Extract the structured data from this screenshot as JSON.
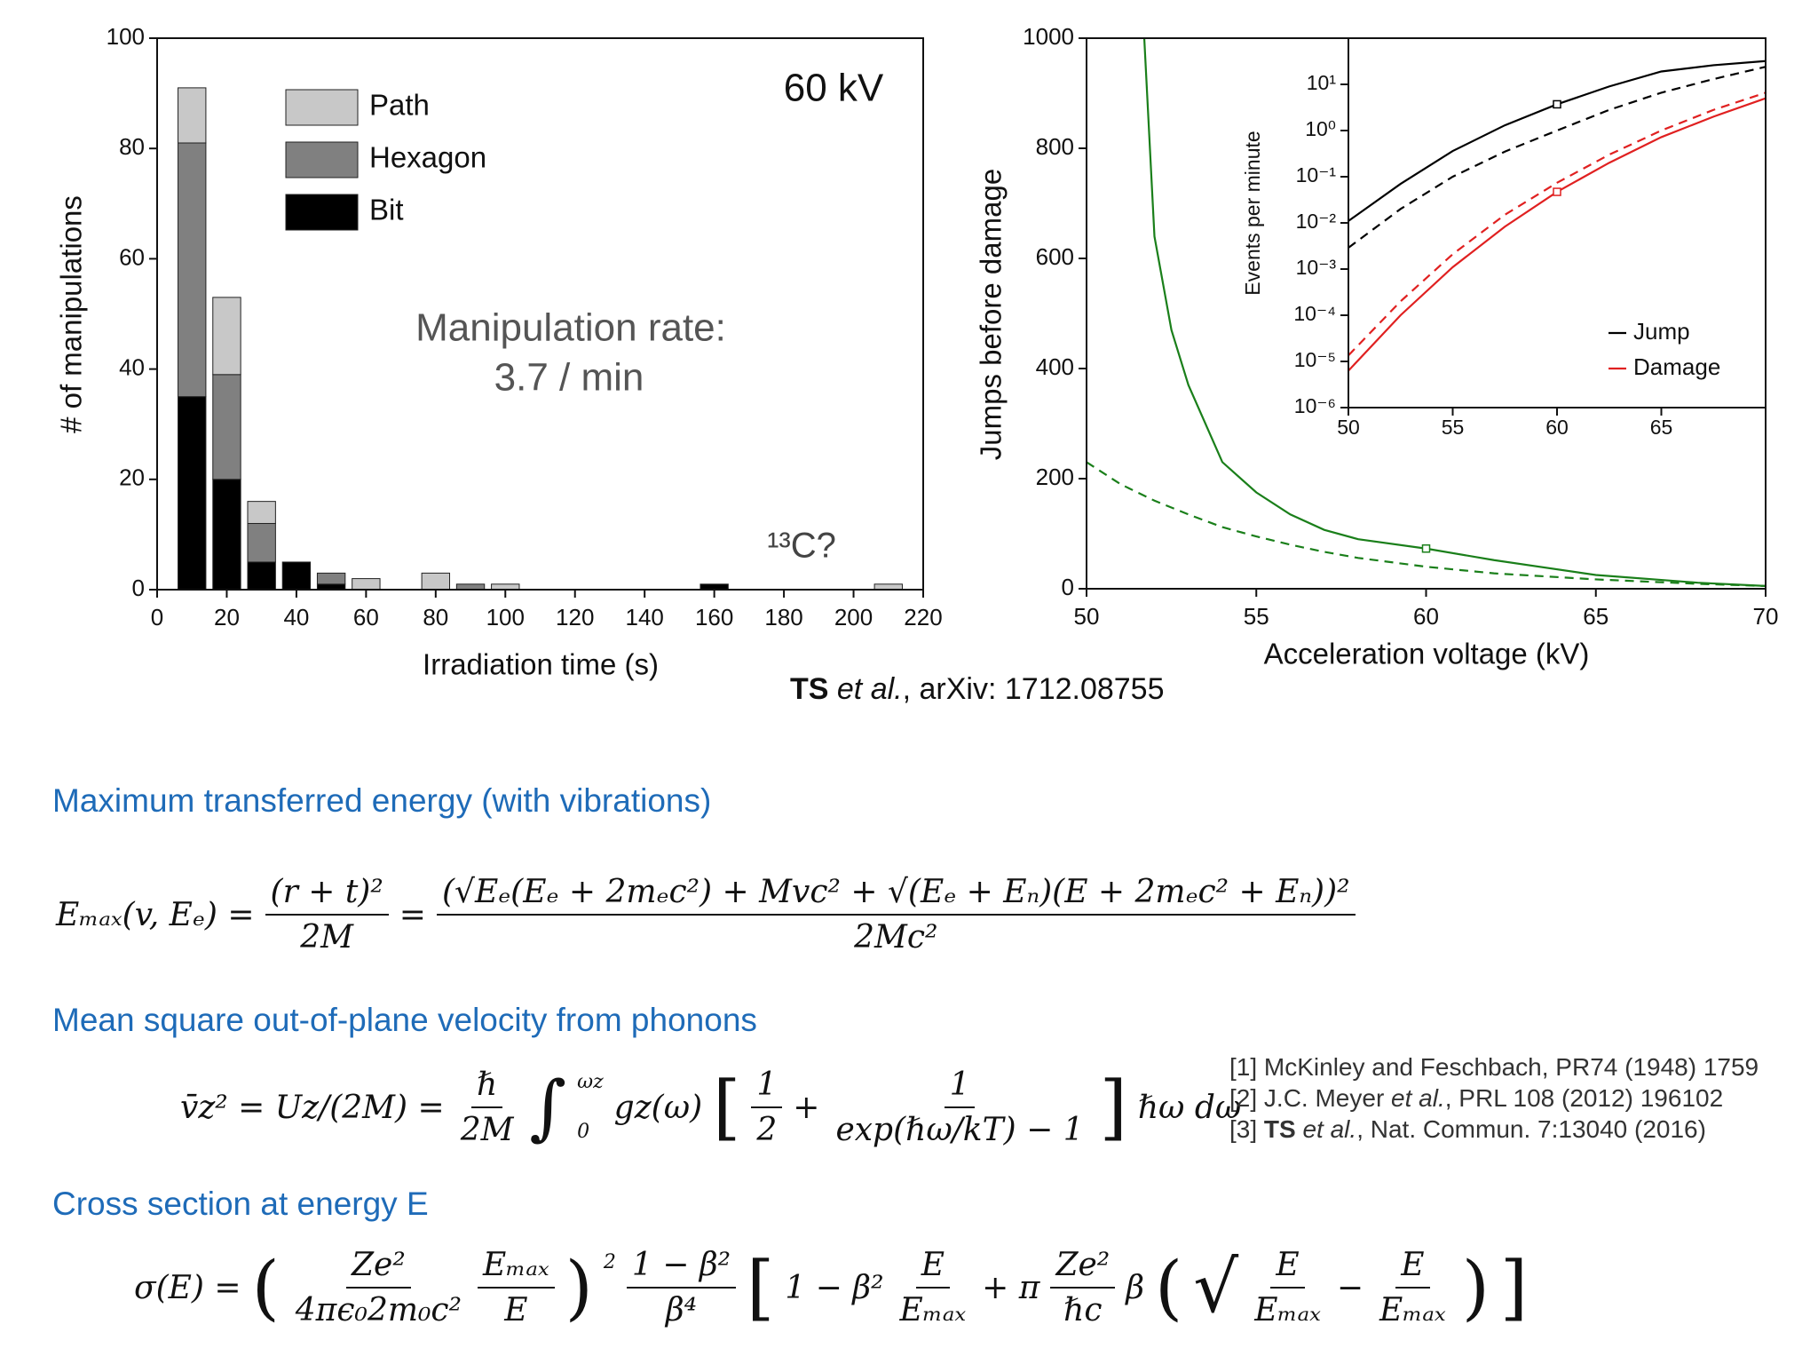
{
  "chart_data": [
    {
      "type": "bar",
      "stacked": true,
      "x": [
        10,
        20,
        30,
        40,
        50,
        60,
        70,
        80,
        90,
        100,
        110,
        120,
        130,
        140,
        150,
        160,
        170,
        180,
        190,
        200,
        210
      ],
      "series": [
        {
          "name": "Bit",
          "color": "#000000",
          "values": [
            35,
            20,
            5,
            5,
            1,
            0,
            0,
            0,
            0,
            0,
            0,
            0,
            0,
            0,
            0,
            1,
            0,
            0,
            0,
            0,
            0
          ]
        },
        {
          "name": "Hexagon",
          "color": "#808080",
          "values": [
            46,
            19,
            7,
            0,
            2,
            0,
            0,
            0,
            1,
            0,
            0,
            0,
            0,
            0,
            0,
            0,
            0,
            0,
            0,
            0,
            0
          ]
        },
        {
          "name": "Path",
          "color": "#c8c8c8",
          "values": [
            10,
            14,
            4,
            0,
            0,
            2,
            0,
            3,
            0,
            1,
            0,
            0,
            0,
            0,
            0,
            0,
            0,
            0,
            0,
            0,
            1
          ]
        }
      ],
      "xlim": [
        0,
        220
      ],
      "ylim": [
        0,
        100
      ],
      "xticks": [
        0,
        20,
        40,
        60,
        80,
        100,
        120,
        140,
        160,
        180,
        200,
        220
      ],
      "yticks": [
        0,
        20,
        40,
        60,
        80,
        100
      ],
      "xlabel": "Irradiation time (s)",
      "ylabel": "# of manipulations",
      "legend": "upper left",
      "annotations": [
        "60 kV",
        "Manipulation rate:",
        "3.7 / min",
        "¹³C?"
      ]
    },
    {
      "type": "line",
      "xlim": [
        50,
        70
      ],
      "ylim": [
        0,
        1000
      ],
      "xticks": [
        50,
        55,
        60,
        65,
        70
      ],
      "yticks": [
        0,
        200,
        400,
        600,
        800,
        1000
      ],
      "xlabel": "Acceleration voltage (kV)",
      "ylabel": "Jumps before damage",
      "highlight_x": 60,
      "series": [
        {
          "color": "#1a7f1a",
          "dash": false,
          "x": [
            51.7,
            52,
            52.5,
            53,
            54,
            55,
            56,
            57,
            58,
            60,
            62,
            65,
            68,
            70
          ],
          "values": [
            1000,
            640,
            470,
            370,
            230,
            175,
            135,
            107,
            90,
            73,
            52,
            25,
            11,
            5
          ]
        },
        {
          "color": "#1a7f1a",
          "dash": true,
          "x": [
            50,
            51,
            52,
            53,
            54,
            55,
            56,
            57,
            58,
            60,
            62,
            65,
            68,
            70
          ],
          "values": [
            230,
            190,
            160,
            135,
            112,
            95,
            80,
            67,
            56,
            40,
            28,
            17,
            9,
            5
          ]
        }
      ]
    },
    {
      "type": "line",
      "log_y": true,
      "xlim": [
        50,
        70
      ],
      "ylim": [
        1e-06,
        100
      ],
      "xticks": [
        50,
        55,
        60,
        65
      ],
      "yticks": [
        {
          "value": 10,
          "label": "10¹"
        },
        {
          "value": 1,
          "label": "10⁰"
        },
        {
          "value": 0.1,
          "label": "10⁻¹"
        },
        {
          "value": 0.01,
          "label": "10⁻²"
        },
        {
          "value": 0.001,
          "label": "10⁻³"
        },
        {
          "value": 0.0001,
          "label": "10⁻⁴"
        },
        {
          "value": 1e-05,
          "label": "10⁻⁵"
        },
        {
          "value": 1e-06,
          "label": "10⁻⁶"
        }
      ],
      "ylabel": "Events per minute",
      "legend": "lower right",
      "highlight_x": 60,
      "series": [
        {
          "name": "Jump",
          "color": "#000000",
          "dash": false,
          "x": [
            50,
            52.5,
            55,
            57.5,
            60,
            62.5,
            65,
            67.5,
            70
          ],
          "values": [
            0.011,
            0.07,
            0.36,
            1.3,
            3.7,
            9,
            19,
            26,
            32
          ]
        },
        {
          "color": "#000000",
          "dash": true,
          "x": [
            50,
            52.5,
            55,
            57.5,
            60,
            62.5,
            65,
            67.5,
            70
          ],
          "values": [
            0.0029,
            0.02,
            0.1,
            0.35,
            1.0,
            2.8,
            6.6,
            13,
            24
          ]
        },
        {
          "name": "Damage",
          "color": "#e02020",
          "dash": false,
          "x": [
            50,
            52.5,
            55,
            57.5,
            60,
            62.5,
            65,
            67.5,
            70
          ],
          "values": [
            6.3e-06,
            0.0001,
            0.0011,
            0.0083,
            0.047,
            0.2,
            0.72,
            2.0,
            5.0
          ]
        },
        {
          "color": "#e02020",
          "dash": true,
          "x": [
            50,
            52.5,
            55,
            57.5,
            60,
            62.5,
            65,
            67.5,
            70
          ],
          "values": [
            1.35e-05,
            0.0002,
            0.0021,
            0.015,
            0.074,
            0.3,
            1.0,
            2.8,
            6.6
          ]
        }
      ]
    }
  ],
  "citation": [
    "TS",
    " et al.",
    ", arXiv: 1712.08755"
  ],
  "headings": [
    "Maximum transferred energy (with vibrations)",
    "Mean square out-of-plane velocity from phonons",
    "Cross section at energy E"
  ],
  "equations": [
    [
      "Eₘₐₓ(v, Eₑ) =",
      {
        "num": "(r + t)²",
        "den": "2M"
      },
      "=",
      {
        "num": "(√Eₑ(Eₑ + 2mₑc²) + Mvc² + √(Eₑ + Eₙ)(E + 2mₑc² + Eₙ))²",
        "den": "2Mc²"
      }
    ],
    [
      "v̄z² = Uz/(2M) =",
      {
        "num": "ℏ",
        "den": "2M"
      },
      "∫",
      {
        "sup": "ωz",
        "sub": "0"
      },
      "gz(ω)",
      "[",
      {
        "num": "1",
        "den": "2"
      },
      "+",
      {
        "num": "1",
        "den": "exp(ℏω/kT) − 1"
      },
      "]",
      "ℏω dω"
    ],
    [
      "σ(E) =",
      "(",
      {
        "num": "Ze²",
        "den": "4πϵ₀2m₀c²"
      },
      {
        "num": "Eₘₐₓ",
        "den": "E"
      },
      ")",
      {
        "sup": "2"
      },
      {
        "num": "1 − β²",
        "den": "β⁴"
      },
      "[",
      "1 − β²",
      {
        "num": "E",
        "den": "Eₘₐₓ"
      },
      "+ π",
      {
        "num": "Ze²",
        "den": "ℏc"
      },
      "β",
      "(",
      "√",
      {
        "num": "E",
        "den": "Eₘₐₓ"
      },
      "−",
      {
        "num": "E",
        "den": "Eₘₐₓ"
      },
      ")",
      "]"
    ]
  ],
  "references": [
    [
      "[1] McKinley and Feschbach, PR74 (1948) 1759"
    ],
    [
      "[2] J.C. Meyer ",
      "et al.",
      ", PRL 108 (2012) 196102"
    ],
    [
      "[3] ",
      "TS",
      " et al.",
      ", Nat. Commun. 7:13040 (2016)"
    ]
  ]
}
